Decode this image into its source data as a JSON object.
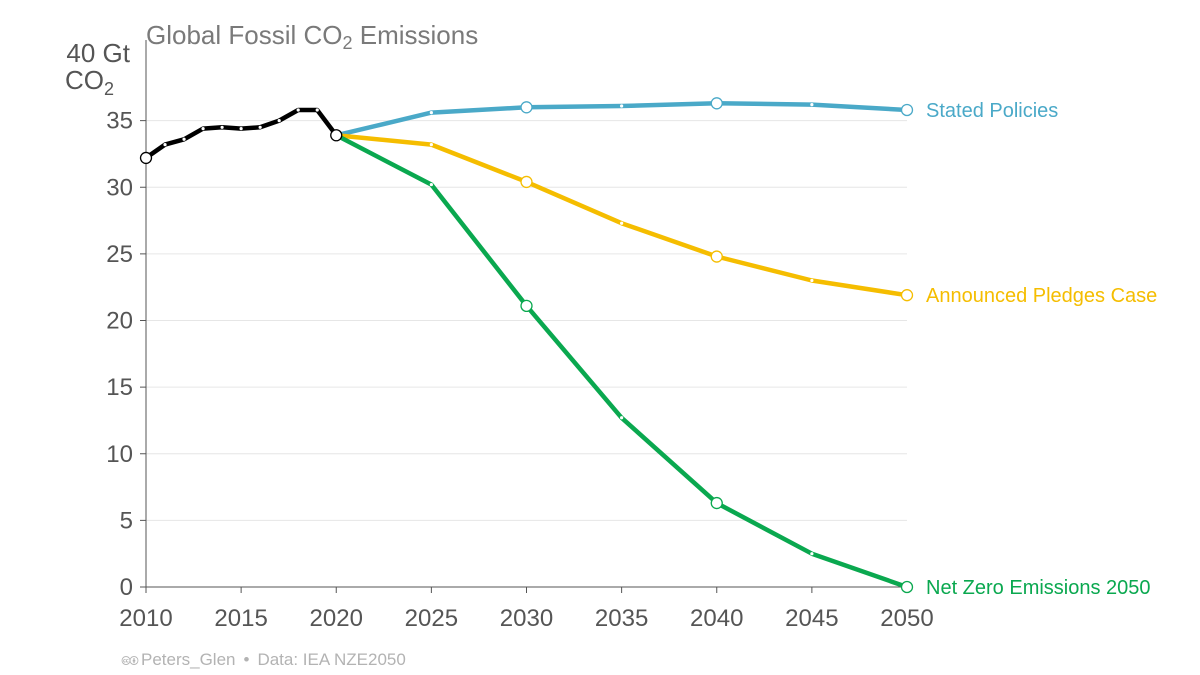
{
  "footer": {
    "cc_icon": "cc-by-icon",
    "author": "Peters_Glen",
    "separator": "•",
    "source": "Data: IEA NZE2050"
  },
  "chart_data": {
    "type": "line",
    "title": "Global Fossil CO",
    "title_subscript": "2",
    "title_suffix": " Emissions",
    "ylabel_top": "40 Gt",
    "ylabel_bottom": "CO",
    "ylabel_subscript": "2",
    "xlim": [
      2010,
      2050
    ],
    "ylim": [
      0,
      40
    ],
    "xticks": [
      2010,
      2015,
      2020,
      2025,
      2030,
      2035,
      2040,
      2045,
      2050
    ],
    "yticks": [
      0,
      5,
      10,
      15,
      20,
      25,
      30,
      35
    ],
    "grid": true,
    "series": [
      {
        "key": "historical",
        "color": "#000000",
        "x": [
          2010,
          2011,
          2012,
          2013,
          2014,
          2015,
          2016,
          2017,
          2018,
          2019,
          2020
        ],
        "y": [
          32.2,
          33.2,
          33.6,
          34.4,
          34.5,
          34.4,
          34.5,
          35.0,
          35.8,
          35.8,
          33.9
        ],
        "open_markers": [
          2010,
          2020
        ]
      },
      {
        "key": "stated",
        "name": "Stated Policies",
        "color": "#4aa9c8",
        "x": [
          2020,
          2025,
          2030,
          2035,
          2040,
          2045,
          2050
        ],
        "y": [
          33.9,
          35.6,
          36.0,
          36.1,
          36.3,
          36.2,
          35.8
        ],
        "open_markers": [
          2030,
          2040,
          2050
        ]
      },
      {
        "key": "pledges",
        "name": "Announced Pledges Case",
        "color": "#f5bd00",
        "x": [
          2020,
          2025,
          2030,
          2035,
          2040,
          2045,
          2050
        ],
        "y": [
          33.9,
          33.2,
          30.4,
          27.3,
          24.8,
          23.0,
          21.9
        ],
        "open_markers": [
          2030,
          2040,
          2050
        ]
      },
      {
        "key": "nze",
        "name": "Net Zero Emissions 2050",
        "color": "#0aa84f",
        "x": [
          2020,
          2025,
          2030,
          2035,
          2040,
          2045,
          2050
        ],
        "y": [
          33.9,
          30.2,
          21.1,
          12.7,
          6.3,
          2.5,
          0.0
        ],
        "open_markers": [
          2030,
          2040,
          2050
        ]
      }
    ]
  }
}
